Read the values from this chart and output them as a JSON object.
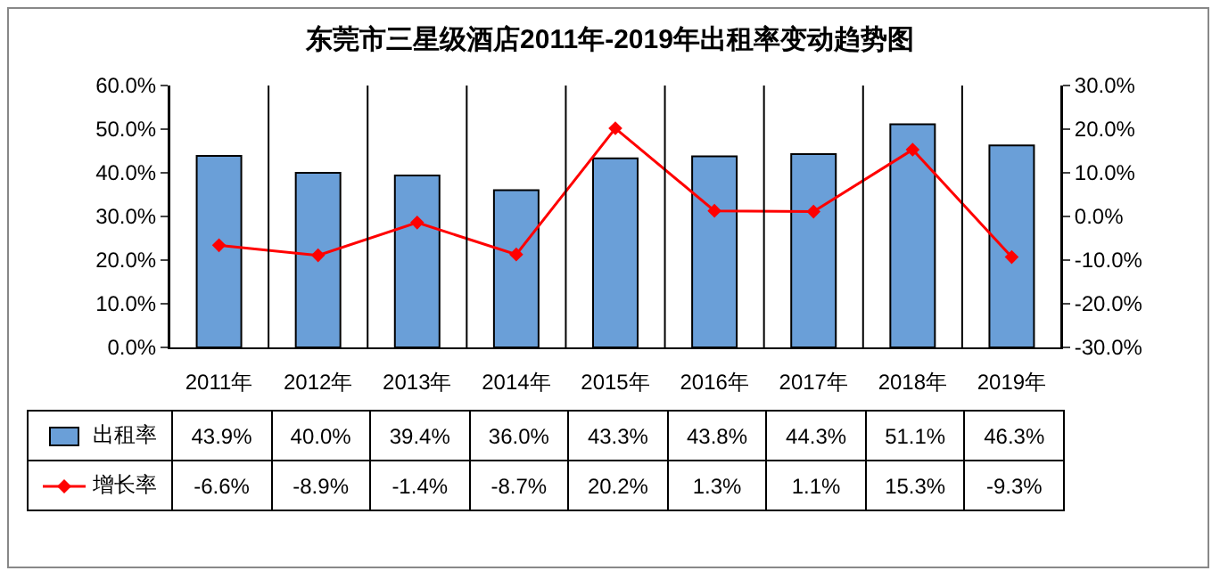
{
  "chart_data": {
    "type": "bar",
    "title": "东莞市三星级酒店2011年-2019年出租率变动趋势图",
    "categories": [
      "2011年",
      "2012年",
      "2013年",
      "2014年",
      "2015年",
      "2016年",
      "2017年",
      "2018年",
      "2019年"
    ],
    "series": [
      {
        "name": "出租率",
        "color": "#6a9fd8",
        "values": [
          43.9,
          40.0,
          39.4,
          36.0,
          43.3,
          43.8,
          44.3,
          51.1,
          46.3
        ],
        "value_labels": [
          "43.9%",
          "40.0%",
          "39.4%",
          "36.0%",
          "43.3%",
          "43.8%",
          "44.3%",
          "51.1%",
          "46.3%"
        ]
      },
      {
        "name": "增长率",
        "type": "line",
        "axis": "y2",
        "color": "#ff0000",
        "marker": "diamond",
        "values": [
          -6.6,
          -8.9,
          -1.4,
          -8.7,
          20.2,
          1.3,
          1.1,
          15.3,
          -9.3
        ],
        "value_labels": [
          "-6.6%",
          "-8.9%",
          "-1.4%",
          "-8.7%",
          "20.2%",
          "1.3%",
          "1.1%",
          "15.3%",
          "-9.3%"
        ]
      }
    ],
    "ylim": [
      0,
      60
    ],
    "yticks": [
      {
        "value": 0,
        "label": "0.0%"
      },
      {
        "value": 10,
        "label": "10.0%"
      },
      {
        "value": 20,
        "label": "20.0%"
      },
      {
        "value": 30,
        "label": "30.0%"
      },
      {
        "value": 40,
        "label": "40.0%"
      },
      {
        "value": 50,
        "label": "50.0%"
      },
      {
        "value": 60,
        "label": "60.0%"
      }
    ],
    "y2lim": [
      -30,
      30
    ],
    "y2ticks": [
      {
        "value": -30,
        "label": "-30.0%"
      },
      {
        "value": -20,
        "label": "-20.0%"
      },
      {
        "value": -10,
        "label": "-10.0%"
      },
      {
        "value": 0,
        "label": "0.0%"
      },
      {
        "value": 10,
        "label": "10.0%"
      },
      {
        "value": 20,
        "label": "20.0%"
      },
      {
        "value": 30,
        "label": "30.0%"
      }
    ],
    "legend": "bottom left"
  }
}
